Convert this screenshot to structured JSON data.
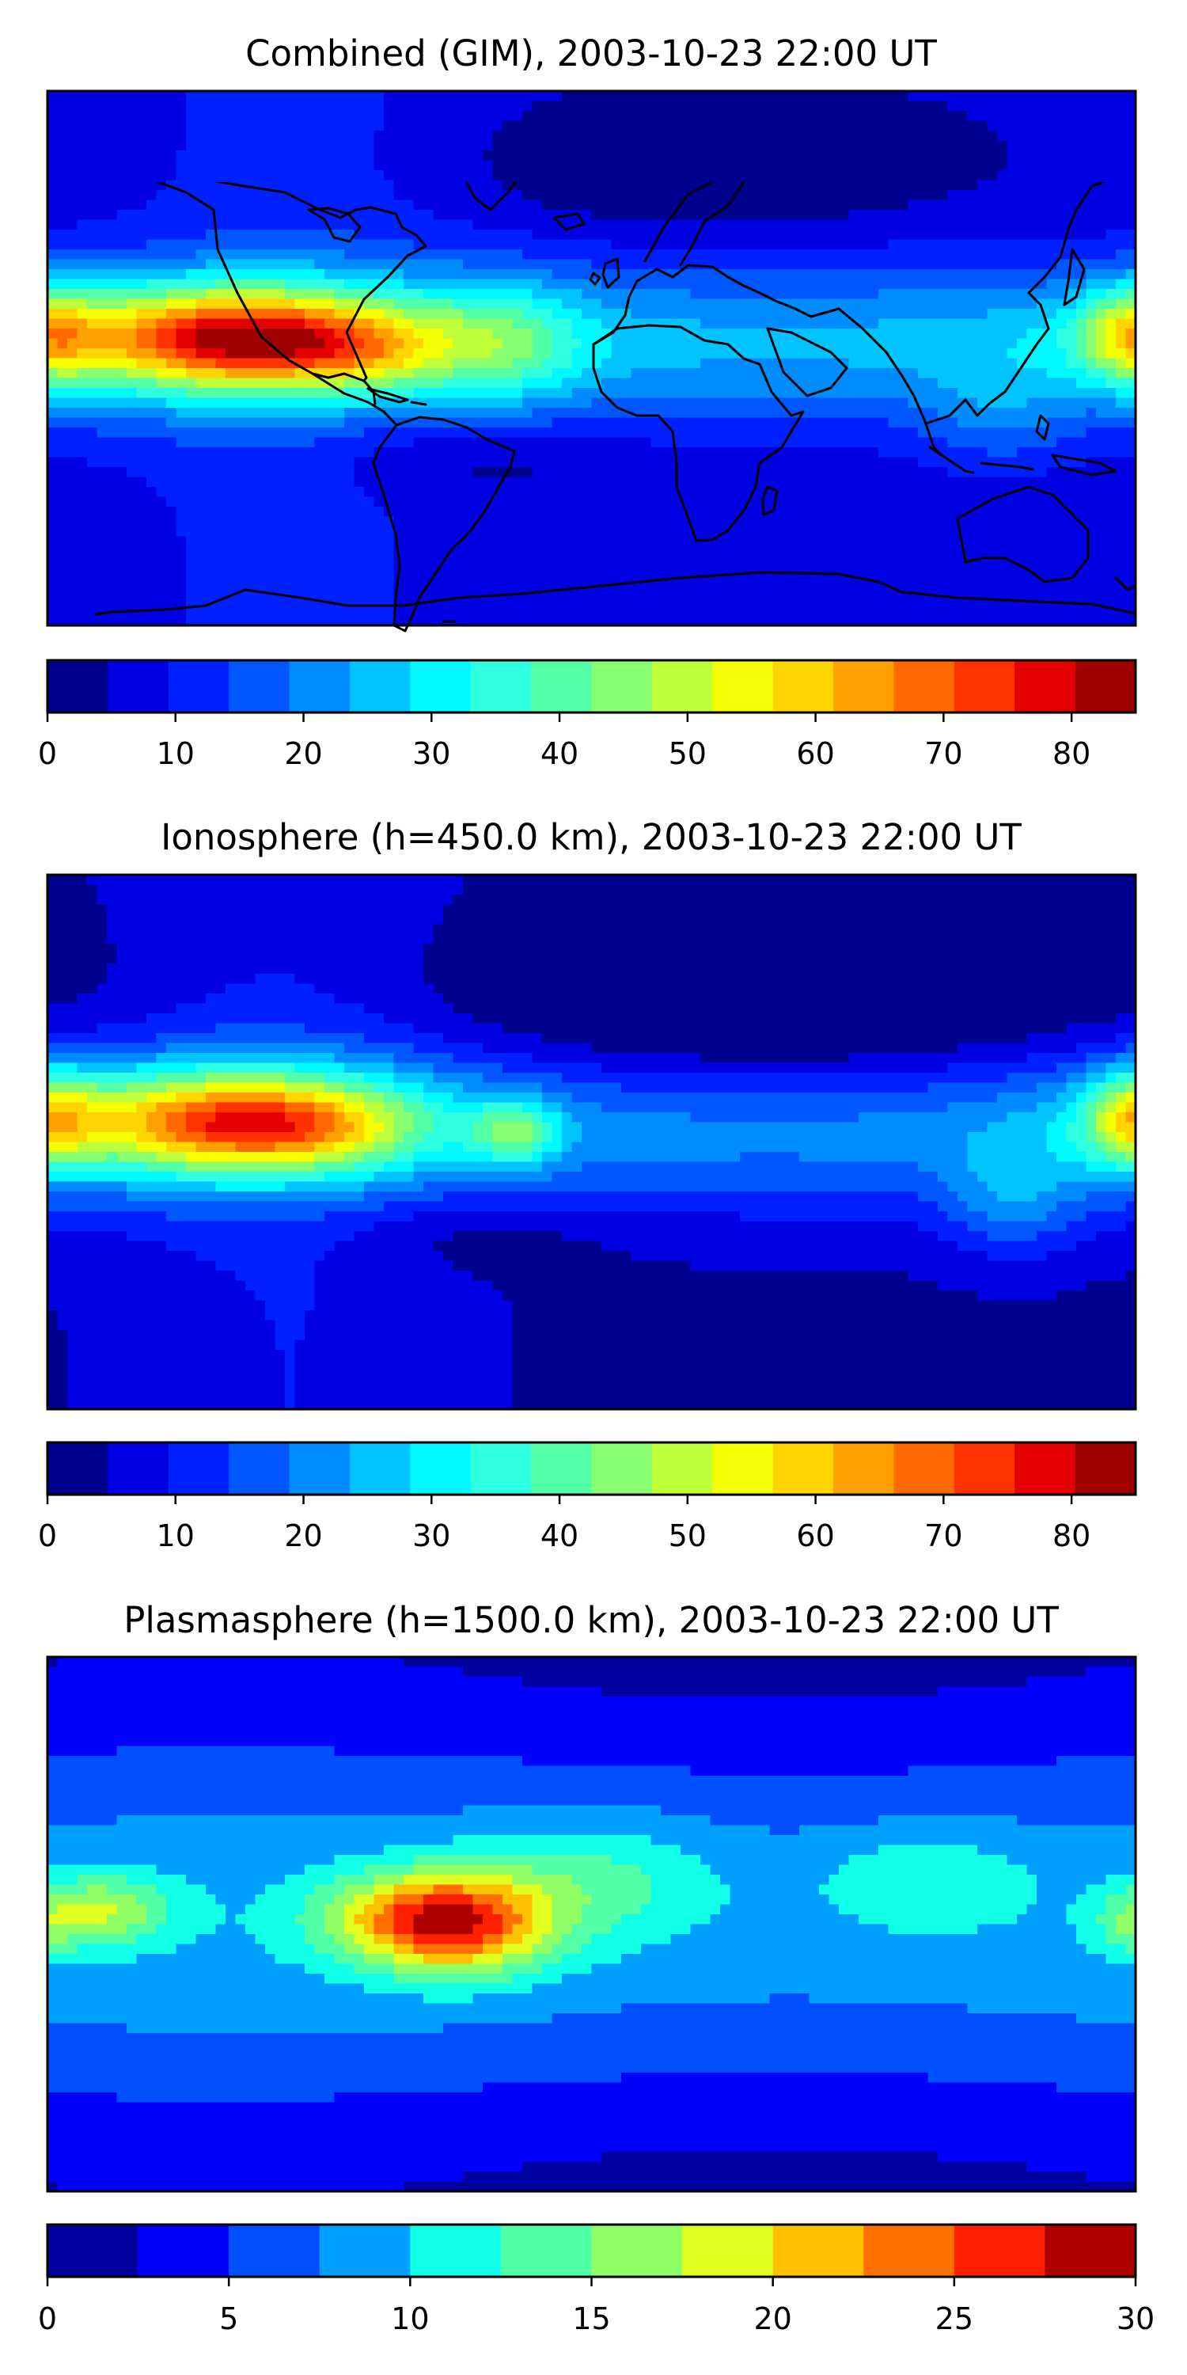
{
  "panels": [
    {
      "id": "combined",
      "title": "Combined (GIM), 2003-10-23 22:00 UT",
      "colorbar": {
        "min": 0,
        "max": 85,
        "step": 5,
        "ticks": [
          0,
          10,
          20,
          30,
          40,
          50,
          60,
          70,
          80
        ],
        "tick_labels": [
          "0",
          "10",
          "20",
          "30",
          "40",
          "50",
          "60",
          "70",
          "80"
        ],
        "colors": [
          "#00008f",
          "#0000e3",
          "#0020ff",
          "#0056ff",
          "#008cff",
          "#00c3ff",
          "#00f9ff",
          "#2dffe0",
          "#52ffa6",
          "#88ff6f",
          "#beff3a",
          "#f4ff04",
          "#ffd400",
          "#ffa000",
          "#ff6900",
          "#ff3200",
          "#e40000",
          "#9f0000"
        ]
      },
      "features": [
        {
          "lon": -120,
          "lat": 7,
          "sx": 40,
          "sy": 12,
          "v": 52
        },
        {
          "lon": -95,
          "lat": 4,
          "sx": 28,
          "sy": 9,
          "v": 12
        },
        {
          "lon": -70,
          "lat": 0,
          "sx": 15,
          "sy": 9,
          "v": 8
        },
        {
          "lon": -30,
          "lat": 5,
          "sx": 20,
          "sy": 15,
          "v": 18
        },
        {
          "lon": -45,
          "lat": -32,
          "sx": 35,
          "sy": 10,
          "v": -6
        },
        {
          "lon": 180,
          "lat": 8,
          "sx": 12,
          "sy": 12,
          "v": 26
        },
        {
          "lon": 135,
          "lat": -20,
          "sx": 18,
          "sy": 14,
          "v": 8
        },
        {
          "lon": 40,
          "lat": 65,
          "sx": 50,
          "sy": 15,
          "v": -8
        }
      ]
    },
    {
      "id": "ionosphere",
      "title": "Ionosphere  (h=450.0 km), 2003-10-23 22:00 UT",
      "colorbar": {
        "min": 0,
        "max": 85,
        "step": 5,
        "ticks": [
          0,
          10,
          20,
          30,
          40,
          50,
          60,
          70,
          80
        ],
        "tick_labels": [
          "0",
          "10",
          "20",
          "30",
          "40",
          "50",
          "60",
          "70",
          "80"
        ],
        "colors": [
          "#00008f",
          "#0000e3",
          "#0020ff",
          "#0056ff",
          "#008cff",
          "#00c3ff",
          "#00f9ff",
          "#2dffe0",
          "#52ffa6",
          "#88ff6f",
          "#beff3a",
          "#f4ff04",
          "#ffd400",
          "#ffa000",
          "#ff6900",
          "#ff3200",
          "#e40000",
          "#9f0000"
        ]
      },
      "features": [
        {
          "lon": -120,
          "lat": 7,
          "sx": 40,
          "sy": 12,
          "v": 48
        },
        {
          "lon": -95,
          "lat": 4,
          "sx": 25,
          "sy": 8,
          "v": 10
        },
        {
          "lon": -25,
          "lat": 3,
          "sx": 10,
          "sy": 8,
          "v": 22
        },
        {
          "lon": -45,
          "lat": -30,
          "sx": 35,
          "sy": 10,
          "v": -5
        },
        {
          "lon": 180,
          "lat": 8,
          "sx": 12,
          "sy": 12,
          "v": 28
        },
        {
          "lon": 140,
          "lat": -20,
          "sx": 16,
          "sy": 14,
          "v": 12
        },
        {
          "lon": 60,
          "lat": 45,
          "sx": 70,
          "sy": 25,
          "v": -12
        }
      ]
    },
    {
      "id": "plasmasphere",
      "title": "Plasmasphere (h=1500.0 km), 2003-10-23 22:00 UT",
      "colorbar": {
        "min": 0,
        "max": 30,
        "step": 2.5,
        "ticks": [
          0,
          5,
          10,
          15,
          20,
          25,
          30
        ],
        "tick_labels": [
          "0",
          "5",
          "10",
          "15",
          "20",
          "25",
          "30"
        ],
        "colors": [
          "#00009f",
          "#0000ff",
          "#0050ff",
          "#00a0ff",
          "#10ffe6",
          "#50ffa6",
          "#90ff66",
          "#e0ff20",
          "#ffc000",
          "#ff7000",
          "#ff2000",
          "#af0000"
        ]
      },
      "features": [
        {
          "lon": -45,
          "lat": 0,
          "sx": 22,
          "sy": 12,
          "v": 17
        },
        {
          "lon": -70,
          "lat": 3,
          "sx": 20,
          "sy": 10,
          "v": 5
        },
        {
          "lon": 0,
          "lat": 15,
          "sx": 30,
          "sy": 15,
          "v": 5
        },
        {
          "lon": -160,
          "lat": 5,
          "sx": 15,
          "sy": 8,
          "v": 8
        },
        {
          "lon": 110,
          "lat": 15,
          "sx": 25,
          "sy": 12,
          "v": 4
        },
        {
          "lon": 180,
          "lat": 0,
          "sx": 10,
          "sy": 8,
          "v": 5
        }
      ]
    }
  ]
}
